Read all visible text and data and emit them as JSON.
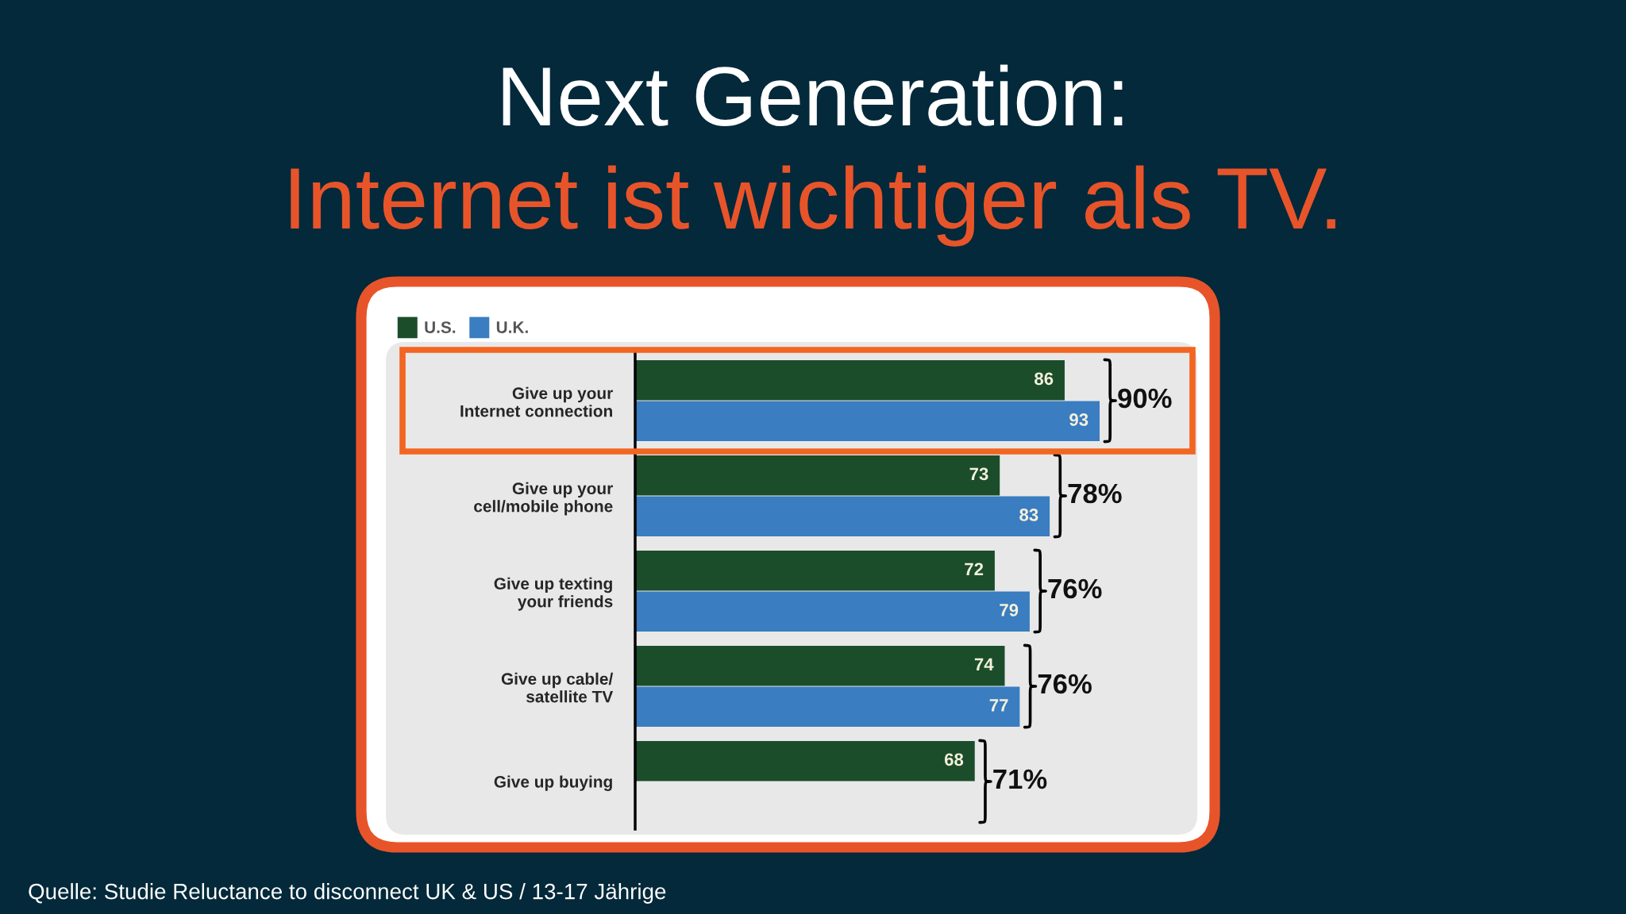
{
  "chart_data": {
    "type": "bar",
    "orientation": "horizontal",
    "title": "Next Generation:",
    "subtitle": "Internet ist wichtiger als TV.",
    "categories": [
      "Give up your\nInternet connection",
      "Give up your\ncell/mobile phone",
      "Give up texting\nyour friends",
      "Give up cable/\nsatellite TV",
      "Give up buying"
    ],
    "series": [
      {
        "name": "U.S.",
        "color": "#1b4d2b",
        "values": [
          86,
          73,
          72,
          74,
          68
        ]
      },
      {
        "name": "U.K.",
        "color": "#3a7dc0",
        "values": [
          93,
          83,
          79,
          77,
          null
        ]
      }
    ],
    "tick_labels": "y",
    "data_labels": true,
    "legend": "top left",
    "annotations": [
      {
        "text": "90%",
        "x": 93,
        "y": "Give up your\nInternet connection"
      },
      {
        "text": "78%",
        "x": 83,
        "y": "Give up your\ncell/mobile phone"
      },
      {
        "text": "76%",
        "x": 79,
        "y": "Give up texting\nyour friends"
      },
      {
        "text": "76%",
        "x": 77,
        "y": "Give up cable/\nsatellite TV"
      },
      {
        "text": "71%",
        "x": 68,
        "y": "Give up buying"
      },
      "Quelle: Studie Reluctance to disconnect UK & US / 13-17 Jährige"
    ]
  }
}
